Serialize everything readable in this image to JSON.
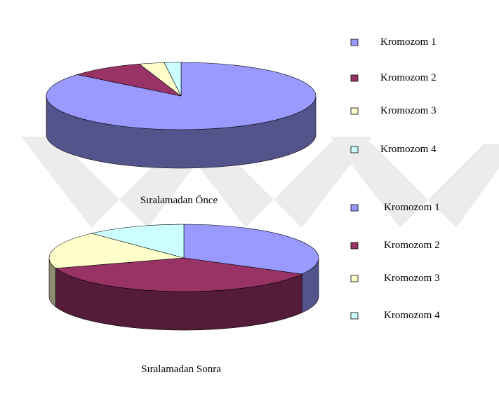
{
  "watermark_color": "#ececec",
  "chart_data": [
    {
      "type": "pie",
      "style": "3d",
      "title": "Sıralamadan Önce",
      "categories": [
        "Kromozom 1",
        "Kromozom 2",
        "Kromozom 3",
        "Kromozom 4"
      ],
      "values": [
        86,
        9,
        3,
        2
      ],
      "colors": [
        "#9999ff",
        "#993366",
        "#ffffcc",
        "#ccffff"
      ],
      "legend_position": "right"
    },
    {
      "type": "pie",
      "style": "3d",
      "title": "Sıralamadan Sonra",
      "categories": [
        "Kromozom 1",
        "Kromozom 2",
        "Kromozom 3",
        "Kromozom 4"
      ],
      "values": [
        33,
        37,
        18,
        12
      ],
      "colors": [
        "#9999ff",
        "#993366",
        "#ffffcc",
        "#ccffff"
      ],
      "legend_position": "right"
    }
  ]
}
